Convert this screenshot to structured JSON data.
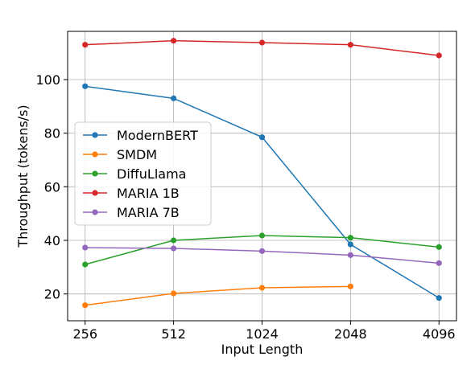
{
  "chart_data": {
    "type": "line",
    "xlabel": "Input Length",
    "ylabel": "Throughput (tokens/s)",
    "x": [
      256,
      512,
      1024,
      2048,
      4096
    ],
    "x_scale": "log2",
    "ylim": [
      10,
      118
    ],
    "yticks": [
      20,
      40,
      60,
      80,
      100
    ],
    "grid": true,
    "legend_position": "center-left",
    "series": [
      {
        "name": "ModernBERT",
        "color": "#1f77b4",
        "values": [
          97.5,
          93.0,
          78.5,
          38.5,
          18.5
        ]
      },
      {
        "name": "SMDM",
        "color": "#ff7f0e",
        "values": [
          15.8,
          20.2,
          22.3,
          22.8,
          null
        ]
      },
      {
        "name": "DiffuLlama",
        "color": "#2ca02c",
        "values": [
          31.0,
          40.0,
          41.8,
          41.0,
          37.5
        ]
      },
      {
        "name": "MARIA 1B",
        "color": "#d62728",
        "values": [
          113.0,
          114.5,
          113.8,
          113.0,
          109.0
        ]
      },
      {
        "name": "MARIA 7B",
        "color": "#9467bd",
        "values": [
          37.3,
          37.0,
          36.0,
          34.5,
          31.5
        ]
      }
    ]
  }
}
